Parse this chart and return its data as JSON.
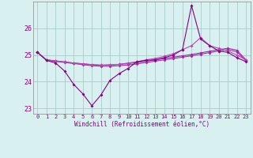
{
  "xlabel": "Windchill (Refroidissement éolien,°C)",
  "hours": [
    0,
    1,
    2,
    3,
    4,
    5,
    6,
    7,
    8,
    9,
    10,
    11,
    12,
    13,
    14,
    15,
    16,
    17,
    18,
    19,
    20,
    21,
    22,
    23
  ],
  "line1": [
    25.1,
    24.8,
    24.76,
    24.72,
    24.68,
    24.64,
    24.6,
    24.58,
    24.58,
    24.6,
    24.63,
    24.67,
    24.72,
    24.77,
    24.82,
    24.87,
    24.92,
    24.97,
    25.03,
    25.09,
    25.15,
    25.2,
    25.12,
    24.78
  ],
  "line2": [
    25.1,
    24.82,
    24.78,
    24.74,
    24.7,
    24.67,
    24.64,
    24.62,
    24.63,
    24.65,
    24.68,
    24.72,
    24.77,
    24.82,
    24.87,
    24.92,
    24.97,
    25.02,
    25.08,
    25.14,
    25.2,
    25.25,
    25.18,
    24.82
  ],
  "line3": [
    25.1,
    24.82,
    24.78,
    24.74,
    24.7,
    24.67,
    24.64,
    24.62,
    24.63,
    24.65,
    24.7,
    24.75,
    24.82,
    24.87,
    24.95,
    25.05,
    25.2,
    25.35,
    25.65,
    25.35,
    25.25,
    25.15,
    25.0,
    24.82
  ],
  "line4": [
    25.1,
    24.8,
    24.7,
    24.4,
    23.9,
    23.55,
    23.1,
    23.5,
    24.05,
    24.3,
    24.5,
    24.75,
    24.8,
    24.82,
    24.9,
    25.0,
    25.2,
    26.85,
    25.6,
    25.35,
    25.15,
    25.1,
    24.9,
    24.75
  ],
  "color1": "#993399",
  "color2": "#aa22aa",
  "color3": "#bb44bb",
  "color4": "#880088",
  "bg_color": "#d8f0f0",
  "grid_color": "#aacccc",
  "ylim": [
    22.8,
    27.0
  ],
  "yticks": [
    23,
    24,
    25,
    26
  ],
  "linewidth": 0.8,
  "markersize": 2.0
}
